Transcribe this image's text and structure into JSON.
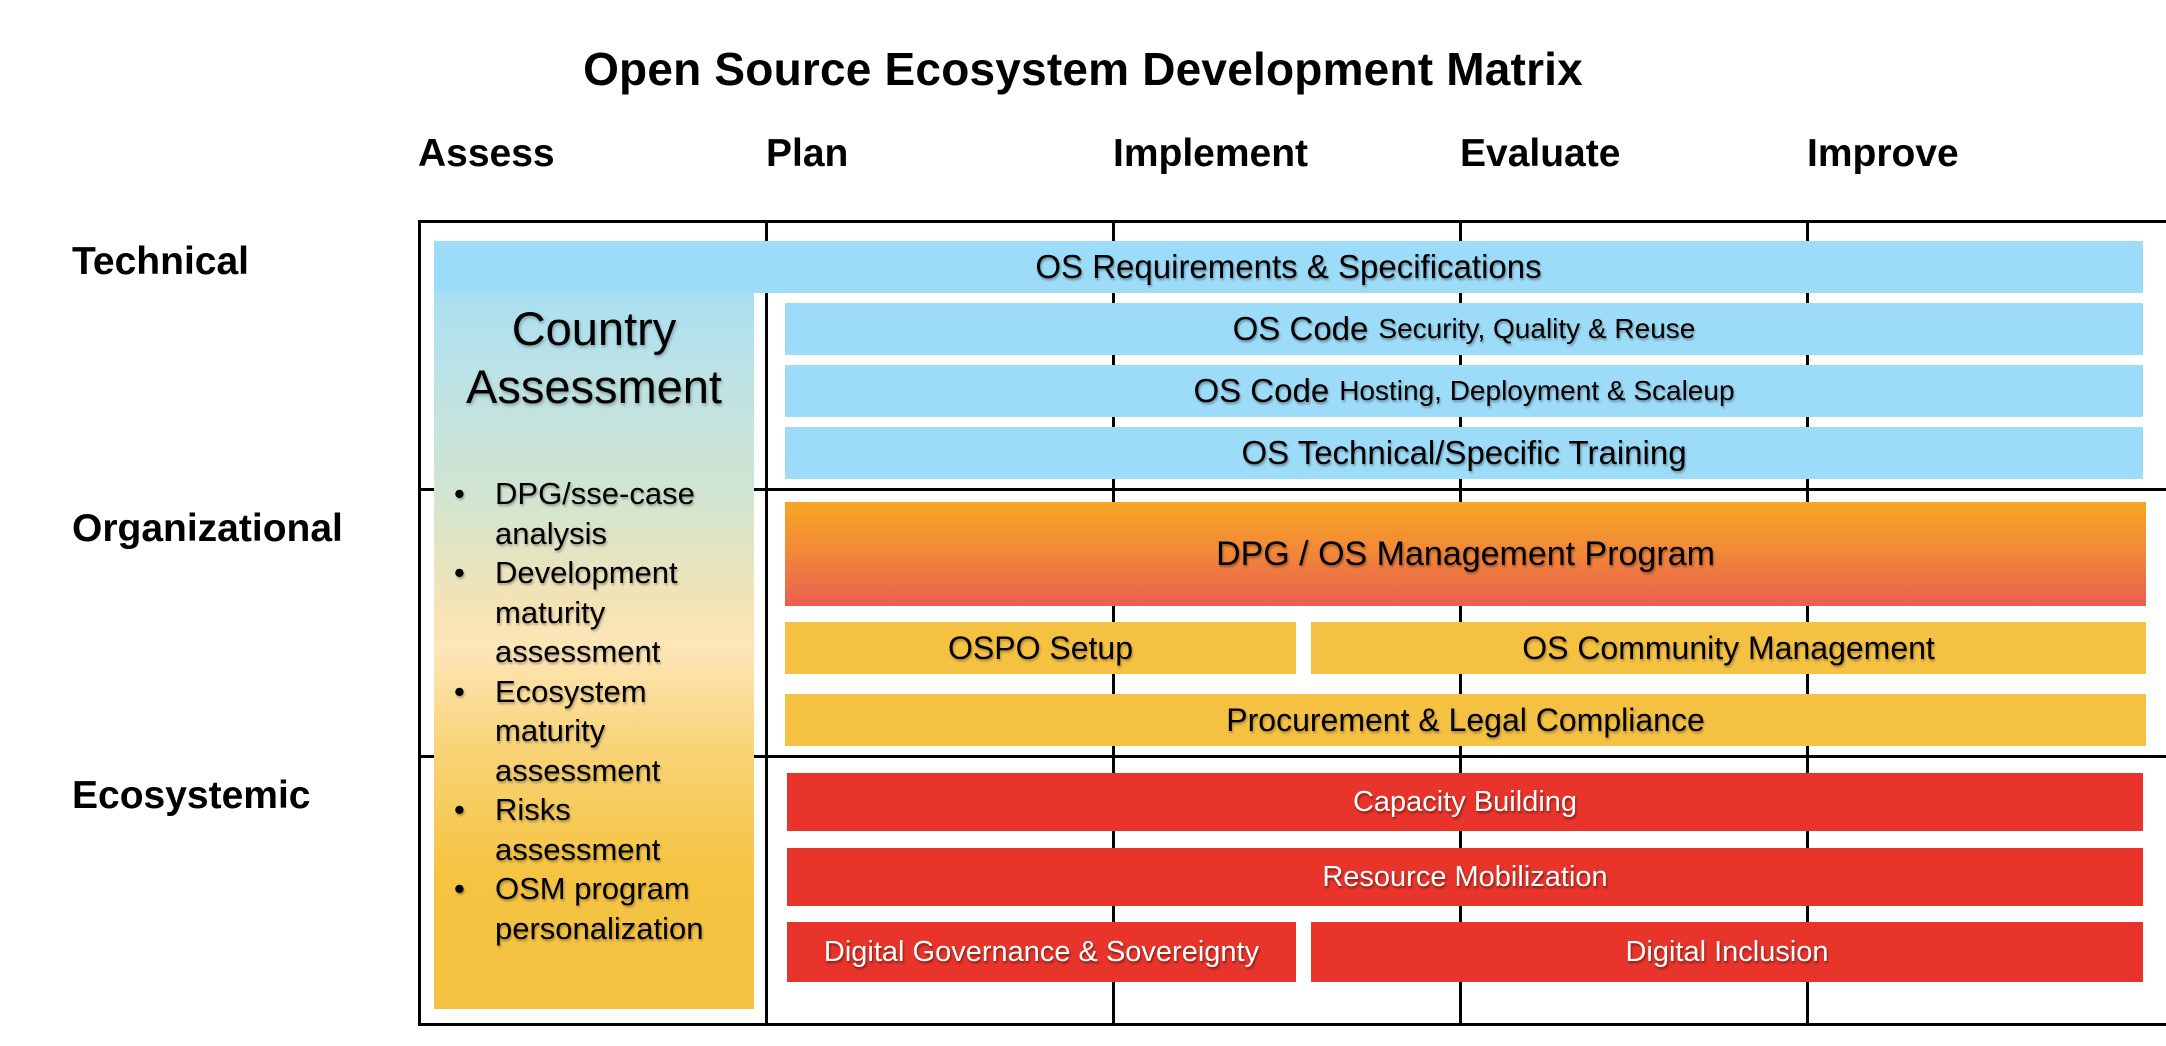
{
  "title": "Open Source Ecosystem Development Matrix",
  "columns": [
    "Assess",
    "Plan",
    "Implement",
    "Evaluate",
    "Improve"
  ],
  "rows": [
    "Technical",
    "Organizational",
    "Ecosystemic"
  ],
  "assessment": {
    "title_line1": "Country",
    "title_line2": "Assessment",
    "bullet": "•",
    "items": [
      {
        "line1": "DPG/sse-case",
        "line2": "analysis"
      },
      {
        "line1": "Development",
        "line2": "maturity",
        "line3": "assessment"
      },
      {
        "line1": "Ecosystem",
        "line2": "maturity",
        "line3": "assessment"
      },
      {
        "line1": "Risks",
        "line2": "assessment"
      },
      {
        "line1": "OSM program",
        "line2": "personalization"
      }
    ]
  },
  "technical": {
    "requirements": "OS Requirements & Specifications",
    "code_security_prefix": "OS Code",
    "code_security_suffix": "Security, Quality & Reuse",
    "code_hosting_prefix": "OS Code",
    "code_hosting_suffix": "Hosting, Deployment & Scaleup",
    "training": "OS Technical/Specific Training"
  },
  "organizational": {
    "management_program": "DPG / OS Management Program",
    "ospo_setup": "OSPO Setup",
    "community_management": "OS Community Management",
    "procurement": "Procurement & Legal Compliance"
  },
  "ecosystemic": {
    "capacity_building": "Capacity Building",
    "resource_mobilization": "Resource Mobilization",
    "digital_governance": "Digital Governance & Sovereignty",
    "digital_inclusion": "Digital Inclusion"
  },
  "colors": {
    "technical": "#9ddcf8",
    "organizational": "#f5c142",
    "management_gradient_top": "#f6a623",
    "management_gradient_bottom": "#ea5f52",
    "ecosystemic": "#e8342a"
  }
}
